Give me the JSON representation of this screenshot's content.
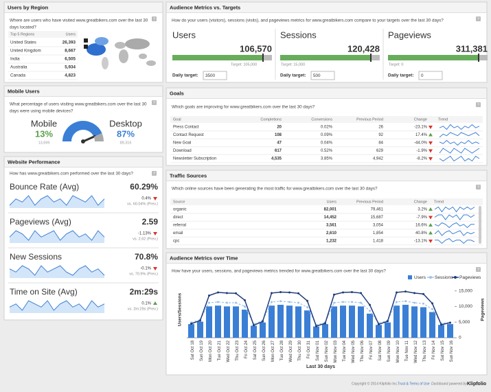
{
  "help": "?",
  "regions": {
    "title": "Users by Region",
    "question": [
      "Where are users who have visited www.greatbikers.com over the last 30",
      "days located?"
    ],
    "columns": [
      "Top 5 Regions",
      "Users"
    ],
    "rows": [
      [
        "United States",
        "26,393"
      ],
      [
        "United Kingdom",
        "8,667"
      ],
      [
        "India",
        "6,505"
      ],
      [
        "Australia",
        "5,934"
      ],
      [
        "Canada",
        "4,823"
      ]
    ]
  },
  "mobile": {
    "title": "Mobile Users",
    "question": [
      "What percentage of users visiting www.greatbikers.com over the last 30",
      "days were using mobile devices?"
    ],
    "segments": [
      {
        "name": "Mobile",
        "value": 13,
        "value_label": "13%",
        "users": "13,699",
        "color": "#5aa04a"
      },
      {
        "name": "Desktop",
        "value": 87,
        "value_label": "87%",
        "users": "89,316",
        "color": "#3a7fd5"
      }
    ]
  },
  "performance": {
    "title": "Website Performance",
    "question": [
      "How has www.greatbikers.com performed over the last 30 days?"
    ],
    "metrics": [
      {
        "name": "Bounce Rate (Avg)",
        "value": "60.29%",
        "change": "0.4%",
        "direction": "down",
        "previous": "vs. 60.04% (Prev.)",
        "trend": [
          3,
          5,
          4,
          6,
          3,
          5,
          6,
          4,
          5,
          3,
          6,
          5,
          4,
          6,
          3,
          5
        ]
      },
      {
        "name": "Pageviews (Avg)",
        "value": "2.59",
        "change": "-1.13%",
        "direction": "down",
        "previous": "vs. 2.62 (Prev.)",
        "trend": [
          4,
          6,
          5,
          3,
          6,
          4,
          5,
          6,
          3,
          5,
          6,
          4,
          5,
          3,
          6,
          4
        ]
      },
      {
        "name": "New Sessions",
        "value": "70.8%",
        "change": "-0.1%",
        "direction": "down",
        "previous": "vs. 70.9% (Prev.)",
        "trend": [
          5,
          4,
          6,
          5,
          3,
          6,
          4,
          5,
          6,
          4,
          3,
          5,
          6,
          4,
          5,
          3
        ]
      },
      {
        "name": "Time on Site (Avg)",
        "value": "2m:29s",
        "change": "0.1%",
        "direction": "up",
        "previous": "vs. 2m:29s (Prev.)",
        "trend": [
          4,
          5,
          3,
          6,
          5,
          4,
          6,
          3,
          5,
          6,
          4,
          5,
          3,
          6,
          4,
          5
        ]
      }
    ]
  },
  "targets": {
    "title": "Audience Metrics vs. Targets",
    "question": [
      "How do your users (visitors), sessions (visits), and pageviews metrics for www.greatbikers.com compare to your targets over the last 30 days?"
    ],
    "daily_label": "Daily target:",
    "metrics": [
      {
        "name": "Users",
        "value": "106,570",
        "target": "Target: 105,000",
        "daily": "3500"
      },
      {
        "name": "Sessions",
        "value": "120,428",
        "target": "Target: 15,000",
        "daily": "500"
      },
      {
        "name": "Pageviews",
        "value": "311,381",
        "target": "Target: 0",
        "daily": "0"
      }
    ]
  },
  "goals": {
    "title": "Goals",
    "question": [
      "Which goals are improving for www.greatbikers.com over the last 30 days?"
    ],
    "columns": [
      "Goal",
      "Completions",
      "Conversions",
      "Previous Period",
      "Change",
      "Trend"
    ],
    "rows": [
      {
        "cells": [
          "Press Contact",
          "20",
          "0.02%",
          "26",
          "-23.1%"
        ],
        "direction": "down",
        "trend": [
          5,
          6,
          4,
          7,
          5,
          6,
          4,
          6,
          5,
          7,
          5,
          6
        ]
      },
      {
        "cells": [
          "Contact Request",
          "108",
          "0.09%",
          "92",
          "17.4%"
        ],
        "direction": "up",
        "trend": [
          4,
          6,
          5,
          7,
          6,
          5,
          7,
          6,
          5,
          6,
          7,
          5
        ]
      },
      {
        "cells": [
          "New Goal",
          "47",
          "0.04%",
          "84",
          "-44.0%"
        ],
        "direction": "down",
        "trend": [
          6,
          5,
          7,
          5,
          6,
          4,
          6,
          5,
          7,
          5,
          6,
          5
        ]
      },
      {
        "cells": [
          "Download",
          "617",
          "0.52%",
          "629",
          "-1.9%"
        ],
        "direction": "down",
        "trend": [
          5,
          7,
          6,
          5,
          7,
          6,
          5,
          7,
          6,
          5,
          6,
          7
        ]
      },
      {
        "cells": [
          "Newsletter Subscription",
          "4,535",
          "3.85%",
          "4,942",
          "-8.2%"
        ],
        "direction": "down",
        "trend": [
          6,
          5,
          6,
          7,
          5,
          6,
          7,
          5,
          6,
          5,
          7,
          6
        ]
      }
    ]
  },
  "traffic": {
    "title": "Traffic Sources",
    "question": [
      "Which online sources have been generating the most traffic for www.greatbikers.com over the last 30 days?"
    ],
    "columns": [
      "Source",
      "Users",
      "Previous Period",
      "Change",
      "Trend"
    ],
    "rows": [
      {
        "cells": [
          "organic",
          "82,001",
          "79,461",
          "3.2%"
        ],
        "direction": "up",
        "trend": [
          6,
          7,
          5,
          7,
          6,
          7,
          5,
          7,
          6,
          7,
          6,
          7
        ]
      },
      {
        "cells": [
          "direct",
          "14,452",
          "15,687",
          "-7.9%"
        ],
        "direction": "down",
        "trend": [
          5,
          6,
          6,
          4,
          6,
          5,
          6,
          4,
          6,
          6,
          5,
          6
        ]
      },
      {
        "cells": [
          "referral",
          "3,561",
          "3,054",
          "16.6%"
        ],
        "direction": "up",
        "trend": [
          6,
          5,
          7,
          6,
          4,
          6,
          7,
          5,
          6,
          4,
          6,
          6
        ]
      },
      {
        "cells": [
          "email",
          "2,610",
          "1,854",
          "40.8%"
        ],
        "direction": "up",
        "trend": [
          5,
          7,
          4,
          6,
          7,
          5,
          6,
          7,
          4,
          6,
          5,
          6
        ]
      },
      {
        "cells": [
          "cpc",
          "1,232",
          "1,418",
          "-13.1%"
        ],
        "direction": "down",
        "trend": [
          6,
          6,
          4,
          6,
          7,
          5,
          6,
          6,
          4,
          6,
          6,
          5
        ]
      }
    ]
  },
  "chart_data": {
    "type": "combo",
    "title": "Audience Metrics over Time",
    "subtitle": "How have your users, sessions, and pageviews metrics trended for www.greatbikers.com over the last 30 days?",
    "xlabel": "Last 30 days",
    "ylabel": "Users/Sessions",
    "y2label": "Pageviews",
    "legend": "top-right",
    "categories": [
      "Sat Oct 18",
      "Sun Oct 19",
      "Mon Oct 20",
      "Tue Oct 21",
      "Wed Oct 22",
      "Thu Oct 23",
      "Fri Oct 24",
      "Sat Oct 25",
      "Sun Oct 26",
      "Mon Oct 27",
      "Tue Oct 28",
      "Wed Oct 29",
      "Thu Oct 30",
      "Fri Oct 31",
      "Sat Nov 01",
      "Sun Nov 02",
      "Mon Nov 03",
      "Tue Nov 04",
      "Wed Nov 05",
      "Thu Nov 06",
      "Fri Nov 07",
      "Sat Nov 08",
      "Sun Nov 09",
      "Mon Nov 10",
      "Tue Nov 11",
      "Wed Nov 12",
      "Thu Nov 13",
      "Fri Nov 14",
      "Sat Nov 15",
      "Sun Nov 16"
    ],
    "ylim": [
      0,
      7000
    ],
    "y2lim": [
      0,
      18000
    ],
    "y2ticks": [
      0,
      {
        "value": 5000,
        "label": "5,000"
      },
      {
        "value": 10000,
        "label": "10,000"
      },
      {
        "value": 15000,
        "label": "15,000"
      }
    ],
    "series": [
      {
        "name": "Users",
        "type": "bar",
        "color": "#3a7fd5",
        "values": [
          1700,
          2000,
          3900,
          4000,
          3900,
          3900,
          3500,
          1500,
          1900,
          4000,
          4100,
          4000,
          3900,
          3400,
          1400,
          1700,
          3900,
          4000,
          4000,
          3900,
          3000,
          1600,
          1900,
          4000,
          4100,
          3900,
          3800,
          3200,
          1600,
          1700
        ]
      },
      {
        "name": "Sessions",
        "type": "line",
        "color": "#9cc3ea",
        "values": [
          1900,
          2250,
          4350,
          4450,
          4350,
          4350,
          3900,
          1700,
          2150,
          4450,
          4550,
          4450,
          4350,
          3800,
          1600,
          1900,
          4350,
          4450,
          4450,
          4350,
          3350,
          1800,
          2150,
          4450,
          4550,
          4350,
          4250,
          3550,
          1800,
          1900
        ]
      },
      {
        "name": "Pageviews",
        "type": "line",
        "axis": "y2",
        "color": "#1f3a7a",
        "values": [
          4500,
          5500,
          13500,
          14500,
          14300,
          14200,
          12000,
          4000,
          5200,
          14300,
          14600,
          14500,
          14200,
          11800,
          3700,
          4600,
          13800,
          14500,
          14600,
          14300,
          10500,
          4300,
          5300,
          14500,
          14800,
          14300,
          14000,
          11000,
          4200,
          4800
        ]
      }
    ]
  },
  "footer": {
    "copyright": "Copyright © 2014 Klipfolio Inc.",
    "terms": "Trust & Terms of Use",
    "powered": "Dashboard powered by",
    "brand": "Klipfolio"
  }
}
